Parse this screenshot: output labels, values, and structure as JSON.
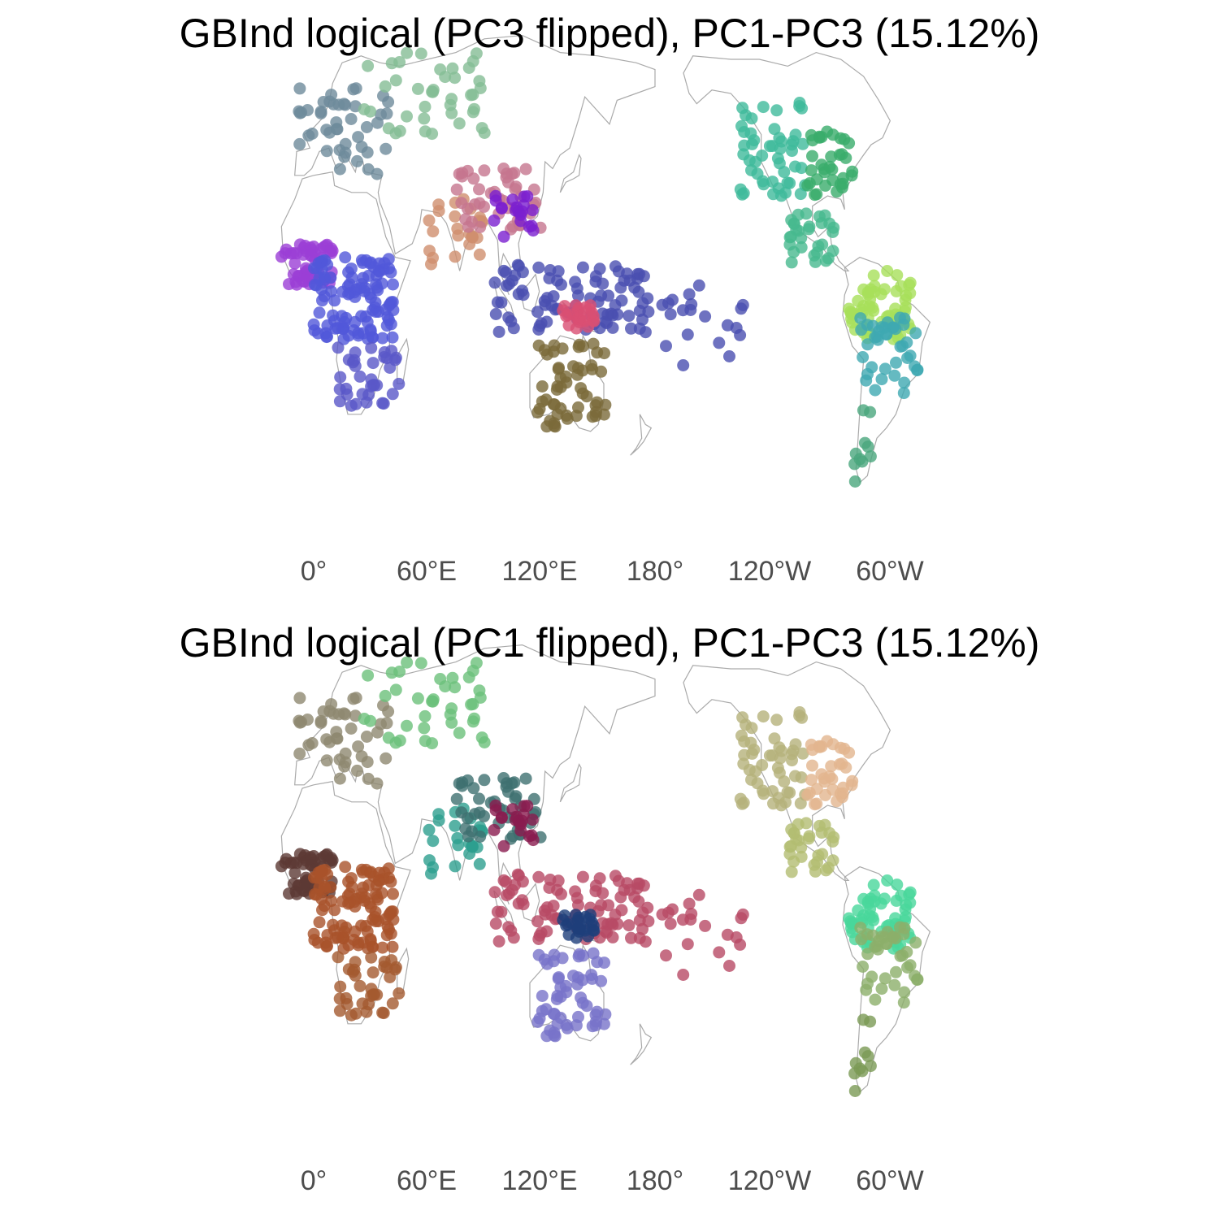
{
  "panels": [
    {
      "title": "GBInd logical (PC3 flipped), PC1-PC3 (15.12%)",
      "xaxis_labels": [
        "0°",
        "60°E",
        "120°E",
        "180°",
        "120°W",
        "60°W"
      ]
    },
    {
      "title": "GBInd logical (PC1 flipped), PC1-PC3 (15.12%)",
      "xaxis_labels": [
        "0°",
        "60°E",
        "120°E",
        "180°",
        "120°W",
        "60°W"
      ]
    }
  ],
  "map": {
    "projection": "pacific-centered world map",
    "coastline_color": "#aaaaaa",
    "point_opacity": 0.8
  },
  "chart_data": [
    {
      "type": "scatter",
      "title": "GBInd logical (PC3 flipped), PC1-PC3 (15.12%)",
      "x_ticks": [
        "0°",
        "60°E",
        "120°E",
        "180°",
        "120°W",
        "60°W"
      ],
      "regions": [
        {
          "lon_range": [
            -17,
            10
          ],
          "lat_range": [
            4,
            16
          ],
          "n": 50,
          "color": "#9b3fd6"
        },
        {
          "lon_range": [
            0,
            42
          ],
          "lat_range": [
            -12,
            12
          ],
          "n": 110,
          "color": "#5157d9"
        },
        {
          "lon_range": [
            12,
            45
          ],
          "lat_range": [
            -33,
            -12
          ],
          "n": 35,
          "color": "#5a58c8"
        },
        {
          "lon_range": [
            -8,
            40
          ],
          "lat_range": [
            36,
            62
          ],
          "n": 45,
          "color": "#6e8b9b"
        },
        {
          "lon_range": [
            25,
            95
          ],
          "lat_range": [
            46,
            72
          ],
          "n": 40,
          "color": "#84bd95"
        },
        {
          "lon_range": [
            60,
            90
          ],
          "lat_range": [
            8,
            30
          ],
          "n": 25,
          "color": "#d08e6e"
        },
        {
          "lon_range": [
            75,
            120
          ],
          "lat_range": [
            20,
            38
          ],
          "n": 45,
          "color": "#c5768e"
        },
        {
          "lon_range": [
            95,
            122
          ],
          "lat_range": [
            18,
            30
          ],
          "n": 20,
          "color": "#7a1fd0"
        },
        {
          "lon_range": [
            95,
            178
          ],
          "lat_range": [
            -10,
            10
          ],
          "n": 90,
          "color": "#4a4fb0"
        },
        {
          "lon_range": [
            118,
            155
          ],
          "lat_range": [
            -38,
            -13
          ],
          "n": 55,
          "color": "#7a6a3a"
        },
        {
          "lon_range": [
            130,
            148
          ],
          "lat_range": [
            -9,
            -2
          ],
          "n": 25,
          "color": "#d94f73"
        },
        {
          "lon_range": [
            175,
            230
          ],
          "lat_range": [
            -20,
            5
          ],
          "n": 20,
          "color": "#4a4fb0"
        },
        {
          "lon_range": [
            -135,
            -100
          ],
          "lat_range": [
            30,
            58
          ],
          "n": 50,
          "color": "#3fba9b"
        },
        {
          "lon_range": [
            -100,
            -75
          ],
          "lat_range": [
            30,
            50
          ],
          "n": 35,
          "color": "#3aac6c"
        },
        {
          "lon_range": [
            -110,
            -85
          ],
          "lat_range": [
            10,
            25
          ],
          "n": 30,
          "color": "#47b98e"
        },
        {
          "lon_range": [
            -78,
            -45
          ],
          "lat_range": [
            -12,
            8
          ],
          "n": 60,
          "color": "#a8e05a"
        },
        {
          "lon_range": [
            -72,
            -40
          ],
          "lat_range": [
            -30,
            -5
          ],
          "n": 40,
          "color": "#3fa9b1"
        },
        {
          "lon_range": [
            -75,
            -65
          ],
          "lat_range": [
            -55,
            -32
          ],
          "n": 10,
          "color": "#4aa67d"
        }
      ]
    },
    {
      "type": "scatter",
      "title": "GBInd logical (PC1 flipped), PC1-PC3 (15.12%)",
      "x_ticks": [
        "0°",
        "60°E",
        "120°E",
        "180°",
        "120°W",
        "60°W"
      ],
      "regions": [
        {
          "lon_range": [
            -17,
            10
          ],
          "lat_range": [
            4,
            16
          ],
          "n": 50,
          "color": "#5d3a35"
        },
        {
          "lon_range": [
            0,
            42
          ],
          "lat_range": [
            -12,
            12
          ],
          "n": 110,
          "color": "#a9522a"
        },
        {
          "lon_range": [
            12,
            45
          ],
          "lat_range": [
            -33,
            -12
          ],
          "n": 35,
          "color": "#a45a30"
        },
        {
          "lon_range": [
            -8,
            40
          ],
          "lat_range": [
            36,
            62
          ],
          "n": 45,
          "color": "#8f8870"
        },
        {
          "lon_range": [
            25,
            95
          ],
          "lat_range": [
            46,
            72
          ],
          "n": 40,
          "color": "#6cc07a"
        },
        {
          "lon_range": [
            60,
            90
          ],
          "lat_range": [
            8,
            30
          ],
          "n": 25,
          "color": "#2d9f8f"
        },
        {
          "lon_range": [
            75,
            120
          ],
          "lat_range": [
            20,
            38
          ],
          "n": 45,
          "color": "#3f7071"
        },
        {
          "lon_range": [
            95,
            122
          ],
          "lat_range": [
            18,
            30
          ],
          "n": 20,
          "color": "#8a1c4f"
        },
        {
          "lon_range": [
            95,
            178
          ],
          "lat_range": [
            -10,
            10
          ],
          "n": 90,
          "color": "#b84a65"
        },
        {
          "lon_range": [
            118,
            155
          ],
          "lat_range": [
            -38,
            -13
          ],
          "n": 55,
          "color": "#7873c9"
        },
        {
          "lon_range": [
            130,
            148
          ],
          "lat_range": [
            -9,
            -2
          ],
          "n": 25,
          "color": "#1e3f7a"
        },
        {
          "lon_range": [
            175,
            230
          ],
          "lat_range": [
            -20,
            5
          ],
          "n": 20,
          "color": "#b84a65"
        },
        {
          "lon_range": [
            -135,
            -100
          ],
          "lat_range": [
            30,
            58
          ],
          "n": 50,
          "color": "#b5b27a"
        },
        {
          "lon_range": [
            -100,
            -75
          ],
          "lat_range": [
            30,
            50
          ],
          "n": 35,
          "color": "#e2b58f"
        },
        {
          "lon_range": [
            -110,
            -85
          ],
          "lat_range": [
            10,
            25
          ],
          "n": 30,
          "color": "#b3bd72"
        },
        {
          "lon_range": [
            -78,
            -45
          ],
          "lat_range": [
            -12,
            8
          ],
          "n": 60,
          "color": "#49d79b"
        },
        {
          "lon_range": [
            -72,
            -40
          ],
          "lat_range": [
            -30,
            -5
          ],
          "n": 40,
          "color": "#8caf6a"
        },
        {
          "lon_range": [
            -75,
            -65
          ],
          "lat_range": [
            -55,
            -32
          ],
          "n": 10,
          "color": "#7a9a55"
        }
      ]
    }
  ]
}
